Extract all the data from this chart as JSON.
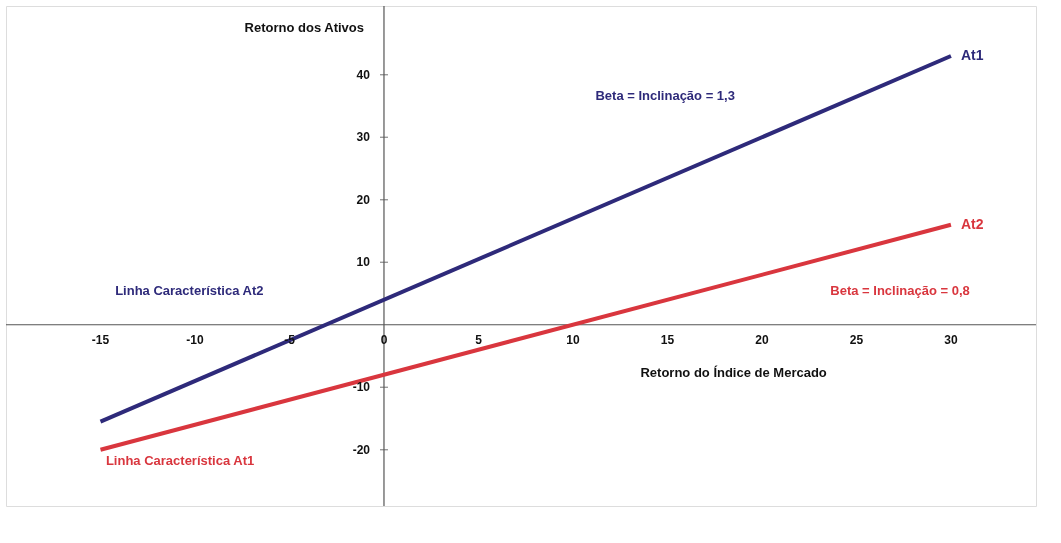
{
  "chart_data": {
    "type": "line",
    "xlabel": "Retorno do Índice de Mercado",
    "ylabel": "Retorno dos Ativos",
    "x": [
      -15,
      30
    ],
    "series": [
      {
        "name": "At1",
        "color": "#2e2a7a",
        "values": [
          -15.5,
          43
        ]
      },
      {
        "name": "At2",
        "color": "#d9363e",
        "values": [
          -20,
          16
        ]
      }
    ],
    "xlim": [
      -20,
      34.5
    ],
    "ylim": [
      -29,
      51
    ],
    "xticks": [
      -15,
      -10,
      -5,
      {
        "value": 0,
        "label": "0"
      },
      5,
      10,
      15,
      20,
      25,
      30
    ],
    "yticks": [
      -20,
      -10,
      10,
      20,
      30,
      40
    ],
    "annotations": [
      "Beta = Inclinação = 1,3",
      "Linha Característica At2",
      "Linha Característica At1",
      "Beta = Inclinação = 0,8"
    ],
    "legend": false,
    "marker": "none",
    "line_style": "solid"
  }
}
